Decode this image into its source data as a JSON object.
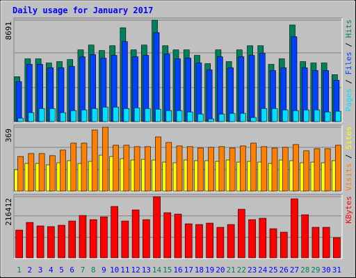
{
  "title": "Daily usage for January 2017",
  "categories": [
    "1",
    "2",
    "3",
    "4",
    "5",
    "6",
    "7",
    "8",
    "9",
    "10",
    "11",
    "12",
    "13",
    "14",
    "15",
    "16",
    "17",
    "18",
    "19",
    "20",
    "21",
    "22",
    "23",
    "24",
    "25",
    "26",
    "27",
    "28",
    "29",
    "30",
    "31"
  ],
  "category_colors": [
    "#00805c",
    "#0000ff",
    "#0000ff",
    "#0000ff",
    "#0000ff",
    "#0000ff",
    "#00805c",
    "#00805c",
    "#0000ff",
    "#0000ff",
    "#0000ff",
    "#0000ff",
    "#0000ff",
    "#00805c",
    "#00805c",
    "#0000ff",
    "#0000ff",
    "#0000ff",
    "#0000ff",
    "#0000ff",
    "#00805c",
    "#00805c",
    "#0000ff",
    "#0000ff",
    "#0000ff",
    "#0000ff",
    "#0000ff",
    "#00805c",
    "#00805c",
    "#0000ff",
    "#0000ff"
  ],
  "legend_separator": " / ",
  "chart_data": [
    {
      "type": "bar",
      "ylim": [
        0,
        8691
      ],
      "yticks": [
        8691
      ],
      "series": [
        {
          "name": "Hits",
          "color": "#00805c",
          "values": [
            3843,
            5380,
            5380,
            5025,
            5143,
            5321,
            6148,
            6562,
            6089,
            6503,
            8040,
            6148,
            6562,
            8691,
            6503,
            6148,
            6148,
            5676,
            4966,
            6148,
            5143,
            6148,
            6503,
            6503,
            4907,
            5380,
            8277,
            5143,
            5025,
            5025,
            4020
          ]
        },
        {
          "name": "Files",
          "color": "#0040ff",
          "values": [
            3429,
            4907,
            4907,
            4611,
            4611,
            4730,
            5557,
            5735,
            5439,
            5676,
            6858,
            5557,
            5676,
            7626,
            5794,
            5380,
            5439,
            5025,
            4434,
            5557,
            4611,
            5557,
            5676,
            5853,
            4375,
            4611,
            7272,
            4611,
            4375,
            4375,
            3547
          ]
        },
        {
          "name": "Pages",
          "color": "#00e0ff",
          "values": [
            296,
            769,
            1123,
            1123,
            769,
            946,
            1005,
            1123,
            1242,
            1242,
            1123,
            1182,
            1123,
            1064,
            946,
            946,
            828,
            650,
            236,
            650,
            709,
            709,
            355,
            1123,
            1123,
            1005,
            946,
            1005,
            1005,
            828,
            887
          ]
        }
      ]
    },
    {
      "type": "bar",
      "ylim": [
        0,
        369
      ],
      "yticks": [
        369
      ],
      "series": [
        {
          "name": "Sites",
          "color": "#ffff00",
          "values": [
            124,
            160,
            160,
            152,
            164,
            176,
            160,
            172,
            208,
            200,
            188,
            180,
            184,
            180,
            168,
            164,
            180,
            176,
            176,
            172,
            180,
            168,
            172,
            168,
            160,
            180,
            176,
            164,
            168,
            164,
            176
          ]
        },
        {
          "name": "Visits",
          "color": "#ff8000",
          "values": [
            200,
            217,
            217,
            205,
            237,
            277,
            277,
            353,
            369,
            265,
            265,
            257,
            257,
            313,
            281,
            261,
            257,
            249,
            253,
            257,
            249,
            261,
            277,
            257,
            249,
            253,
            269,
            233,
            245,
            245,
            265
          ]
        }
      ]
    },
    {
      "type": "bar",
      "ylim": [
        0,
        216412
      ],
      "yticks": [
        216412
      ],
      "series": [
        {
          "name": "KBytes",
          "color": "#ff0000",
          "values": [
            98360,
            125409,
            113114,
            110655,
            115573,
            130327,
            149999,
            135245,
            145081,
            181966,
            130327,
            169671,
            135245,
            216412,
            159835,
            154917,
            120491,
            118032,
            122950,
            108196,
            118032,
            172130,
            135245,
            140163,
            103278,
            90983,
            209015,
            152458,
            108196,
            108196,
            71311
          ]
        }
      ]
    }
  ]
}
